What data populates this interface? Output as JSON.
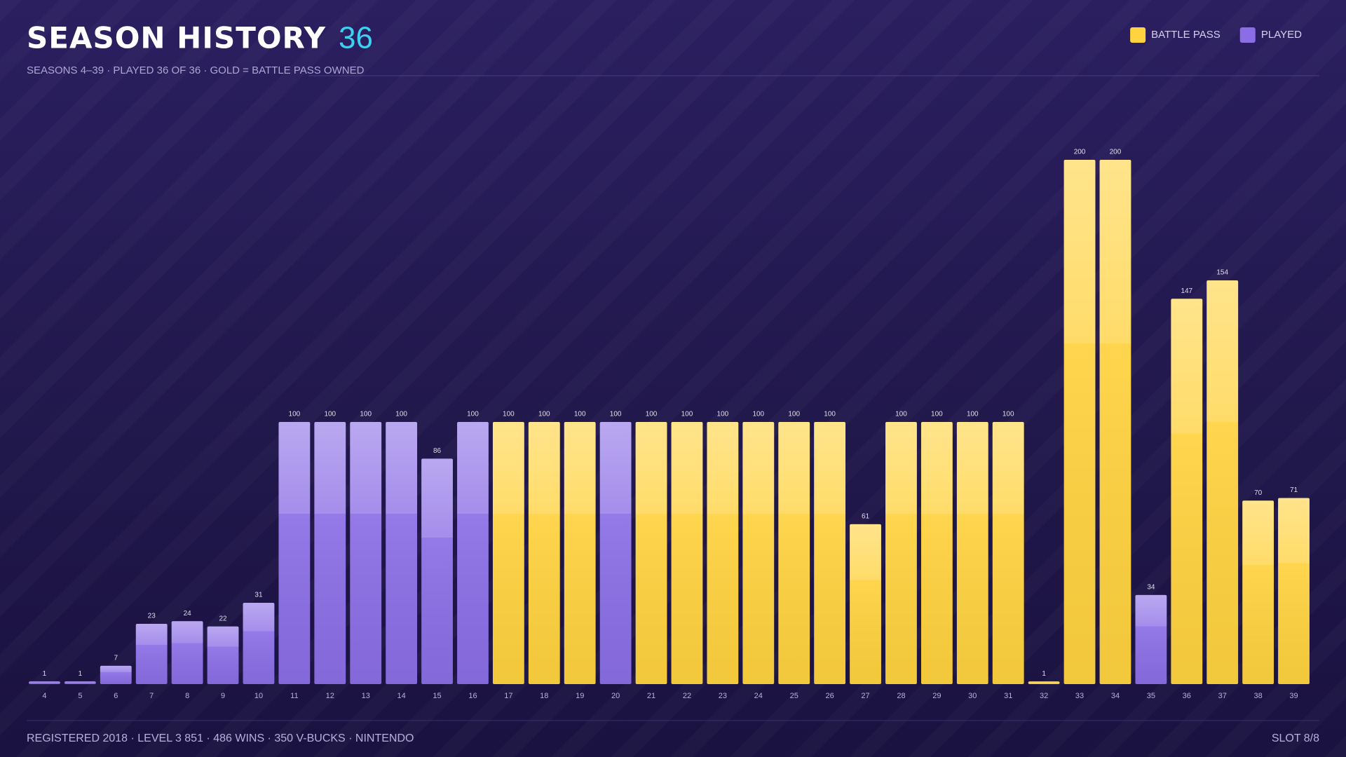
{
  "chart_data": {
    "type": "bar",
    "title": "SEASON HISTORY",
    "title_count": 36,
    "subtitle": "SEASONS 4–39 · PLAYED 36 OF 36 · GOLD = BATTLE PASS OWNED",
    "footer": "REGISTERED 2018 · LEVEL 3 851 · 486 WINS · 350 V-BUCKS · NINTENDO",
    "footer_right": "SLOT 8/8",
    "categories": [
      "4",
      "5",
      "6",
      "7",
      "8",
      "9",
      "10",
      "11",
      "12",
      "13",
      "14",
      "15",
      "16",
      "17",
      "18",
      "19",
      "20",
      "21",
      "22",
      "23",
      "24",
      "25",
      "26",
      "27",
      "28",
      "29",
      "30",
      "31",
      "32",
      "33",
      "34",
      "35",
      "36",
      "37",
      "38",
      "39"
    ],
    "series": [
      {
        "name": "BATTLE PASS",
        "color": "#ffd23f",
        "values": [
          null,
          null,
          null,
          null,
          null,
          null,
          null,
          null,
          null,
          null,
          null,
          null,
          null,
          100,
          100,
          100,
          null,
          100,
          100,
          100,
          100,
          100,
          100,
          61,
          100,
          100,
          100,
          100,
          1,
          200,
          200,
          null,
          147,
          154,
          70,
          71
        ]
      },
      {
        "name": "PLAYED",
        "color": "#8b6ee6",
        "values": [
          1,
          1,
          7,
          23,
          24,
          22,
          31,
          100,
          100,
          100,
          100,
          86,
          100,
          null,
          null,
          null,
          100,
          null,
          null,
          null,
          null,
          null,
          null,
          null,
          null,
          null,
          null,
          null,
          null,
          null,
          null,
          34,
          null,
          null,
          null,
          null
        ]
      }
    ],
    "ylim": [
      0,
      200
    ]
  }
}
